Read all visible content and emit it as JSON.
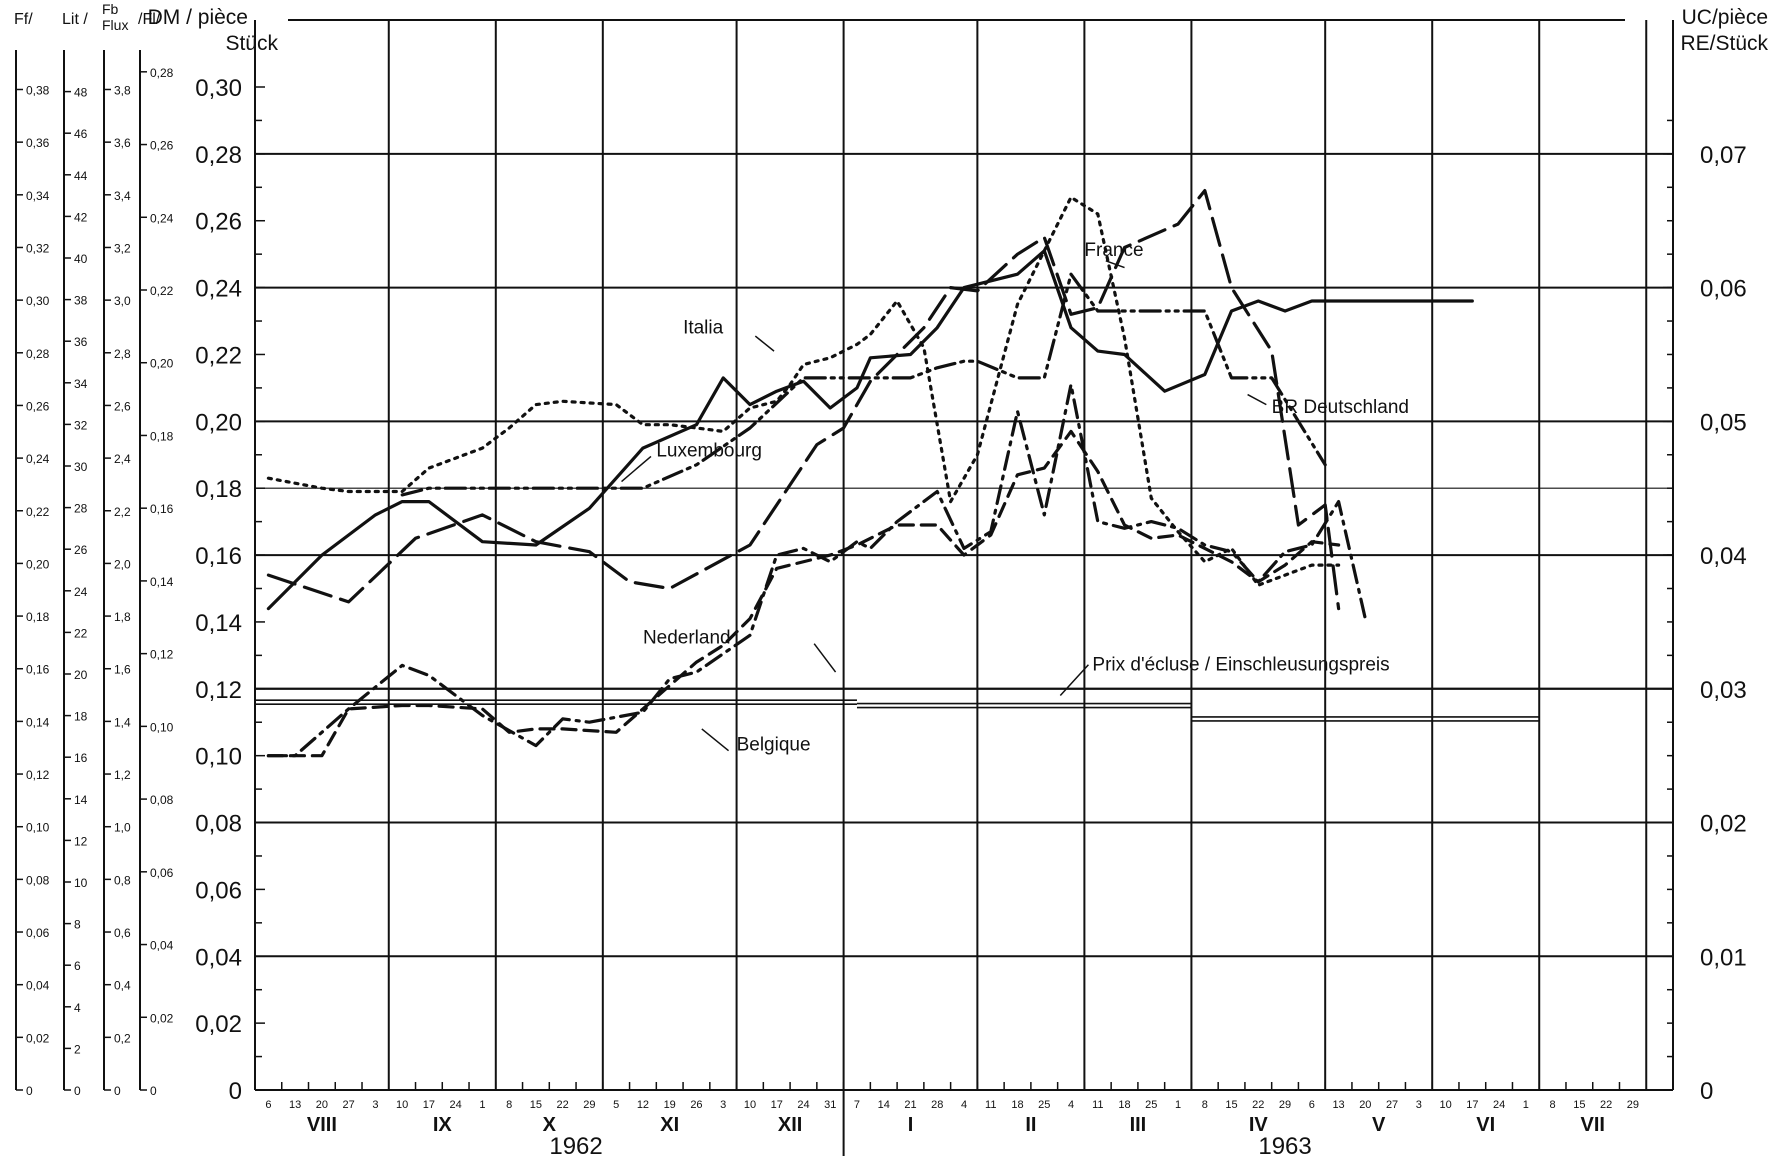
{
  "chart_data": {
    "type": "line",
    "title": "",
    "units": {
      "left_main": "DM / pièce\nStück",
      "right_main": "UC/pièce\nRE/Stück",
      "left_extra": [
        {
          "label": "Ff/",
          "ticks": [
            "0,38",
            "0,36",
            "0,34",
            "0,32",
            "0,30",
            "0,28",
            "0,26",
            "0,24",
            "0,22",
            "0,20",
            "0,18",
            "0,16",
            "0,14",
            "0,12",
            "0,10",
            "0,08",
            "0,06",
            "0,04",
            "0,02",
            "0"
          ],
          "values": [
            0.38,
            0.36,
            0.34,
            0.32,
            0.3,
            0.28,
            0.26,
            0.24,
            0.22,
            0.2,
            0.18,
            0.16,
            0.14,
            0.12,
            0.1,
            0.08,
            0.06,
            0.04,
            0.02,
            0
          ],
          "max": 0.395
        },
        {
          "label": "Lit /",
          "ticks": [
            "48",
            "46",
            "44",
            "42",
            "40",
            "38",
            "36",
            "34",
            "32",
            "30",
            "28",
            "26",
            "24",
            "22",
            "20",
            "18",
            "16",
            "14",
            "12",
            "10",
            "8",
            "6",
            "4",
            "2",
            "0"
          ],
          "values": [
            48,
            46,
            44,
            42,
            40,
            38,
            36,
            34,
            32,
            30,
            28,
            26,
            24,
            22,
            20,
            18,
            16,
            14,
            12,
            10,
            8,
            6,
            4,
            2,
            0
          ],
          "max": 50.0
        },
        {
          "label": "Fb\nFlux",
          "ticks": [
            "3,8",
            "3,6",
            "3,4",
            "3,2",
            "3,0",
            "2,8",
            "2,6",
            "2,4",
            "2,2",
            "2,0",
            "1,8",
            "1,6",
            "1,4",
            "1,2",
            "1,0",
            "0,8",
            "0,6",
            "0,4",
            "0,2",
            "0"
          ],
          "values": [
            3.8,
            3.6,
            3.4,
            3.2,
            3.0,
            2.8,
            2.6,
            2.4,
            2.2,
            2.0,
            1.8,
            1.6,
            1.4,
            1.2,
            1.0,
            0.8,
            0.6,
            0.4,
            0.2,
            0
          ],
          "max": 3.95
        },
        {
          "label": "/Fl/",
          "ticks": [
            "0,28",
            "0,26",
            "0,24",
            "0,22",
            "0,20",
            "0,18",
            "0,16",
            "0,14",
            "0,12",
            "0,10",
            "0,08",
            "0,06",
            "0,04",
            "0,02",
            "0"
          ],
          "values": [
            0.28,
            0.26,
            0.24,
            0.22,
            0.2,
            0.18,
            0.16,
            0.14,
            0.12,
            0.1,
            0.08,
            0.06,
            0.04,
            0.02,
            0
          ],
          "max": 0.286
        }
      ]
    },
    "y_main": {
      "min": 0,
      "max": 0.3,
      "ticks": [
        0.3,
        0.28,
        0.26,
        0.24,
        0.22,
        0.2,
        0.18,
        0.16,
        0.14,
        0.12,
        0.1,
        0.08,
        0.06,
        0.04,
        0.02,
        0
      ],
      "tick_labels": [
        "0,30",
        "0,28",
        "0,26",
        "0,24",
        "0,22",
        "0,20",
        "0,18",
        "0,16",
        "0,14",
        "0,12",
        "0,10",
        "0,08",
        "0,06",
        "0,04",
        "0,02",
        "0"
      ],
      "grid_major": [
        0.28,
        0.24,
        0.2,
        0.16,
        0.12,
        0.08,
        0.04
      ],
      "grid_minor": [
        0.18
      ]
    },
    "y_right": {
      "ticks": [
        0.07,
        0.06,
        0.05,
        0.04,
        0.03,
        0.02,
        0.01,
        0
      ],
      "tick_labels": [
        "0,07",
        "0,06",
        "0,05",
        "0,04",
        "0,03",
        "0,02",
        "0,01",
        "0"
      ]
    },
    "x_axis": {
      "weeks": 53,
      "week_labels": [
        "6",
        "13",
        "20",
        "27",
        "3",
        "10",
        "17",
        "24",
        "1",
        "8",
        "15",
        "22",
        "29",
        "5",
        "12",
        "19",
        "26",
        "3",
        "10",
        "17",
        "24",
        "31",
        "7",
        "14",
        "21",
        "28",
        "4",
        "11",
        "18",
        "25",
        "4",
        "11",
        "18",
        "25",
        "1",
        "8",
        "15",
        "22",
        "29",
        "6",
        "13",
        "20",
        "27",
        "3",
        "10",
        "17",
        "24",
        "1",
        "8",
        "15",
        "22",
        "29"
      ],
      "month_boundaries": [
        0,
        5,
        9,
        13,
        18,
        22,
        27,
        31,
        35,
        40,
        44,
        48,
        52,
        53
      ],
      "months": [
        "VIII",
        "IX",
        "X",
        "XI",
        "XII",
        "I",
        "II",
        "III",
        "IV",
        "V",
        "VI",
        "VII"
      ],
      "years": [
        {
          "label": "1962",
          "center": 11.5
        },
        {
          "label": "1963",
          "center": 38.0
        }
      ],
      "year_divider": 22.5
    },
    "series": [
      {
        "name": "France",
        "style": "longdash",
        "label_pos": [
          30.5,
          0.2495
        ],
        "x": [
          0,
          3,
          5.5,
          8,
          10,
          12,
          13.5,
          15,
          18,
          20.5,
          21.5,
          22.5,
          24.5,
          25.5,
          26.5,
          28,
          29,
          30,
          31,
          32,
          34,
          35,
          36,
          37.5,
          38.5,
          39.5,
          40
        ],
        "y": [
          0.154,
          0.146,
          0.165,
          0.172,
          0.164,
          0.161,
          0.152,
          0.15,
          0.163,
          0.193,
          0.198,
          0.212,
          0.228,
          0.24,
          0.239,
          0.25,
          0.255,
          0.232,
          0.234,
          0.252,
          0.259,
          0.269,
          0.24,
          0.221,
          0.169,
          0.175,
          0.144
        ]
      },
      {
        "name": "BR Deutschland",
        "style": "solid",
        "label_pos": [
          37.5,
          0.2025
        ],
        "x": [
          0,
          2,
          4,
          5,
          6,
          8,
          10,
          12,
          14,
          16,
          17,
          18,
          19,
          20,
          21,
          22,
          22.5,
          24,
          25,
          26,
          28,
          29,
          30,
          31,
          32,
          33.5,
          35,
          36,
          37,
          38,
          39,
          40,
          42,
          43,
          45
        ],
        "y": [
          0.144,
          0.16,
          0.172,
          0.176,
          0.176,
          0.164,
          0.163,
          0.174,
          0.192,
          0.199,
          0.213,
          0.205,
          0.209,
          0.212,
          0.204,
          0.21,
          0.219,
          0.22,
          0.228,
          0.24,
          0.244,
          0.251,
          0.228,
          0.221,
          0.22,
          0.209,
          0.214,
          0.233,
          0.236,
          0.233,
          0.236,
          0.236,
          0.236,
          0.236,
          0.236
        ]
      },
      {
        "name": "Italia",
        "style": "dotted",
        "label_pos": [
          15.5,
          0.2263
        ],
        "x": [
          0,
          2,
          3,
          5,
          6,
          8,
          9,
          10,
          11,
          13,
          14,
          15,
          16,
          17,
          18,
          19,
          19.5,
          20,
          21,
          22,
          22.5,
          23.5,
          24.5,
          25.5,
          26.5,
          28,
          29,
          30,
          31,
          32,
          33,
          34,
          35,
          36,
          37,
          38,
          39,
          40
        ],
        "y": [
          0.183,
          0.18,
          0.179,
          0.179,
          0.186,
          0.192,
          0.198,
          0.205,
          0.206,
          0.205,
          0.199,
          0.199,
          0.198,
          0.197,
          0.204,
          0.206,
          0.211,
          0.217,
          0.219,
          0.223,
          0.226,
          0.236,
          0.222,
          0.176,
          0.19,
          0.235,
          0.251,
          0.267,
          0.262,
          0.225,
          0.177,
          0.167,
          0.158,
          0.162,
          0.151,
          0.154,
          0.157,
          0.157
        ]
      },
      {
        "name": "Luxembourg",
        "style": "dashdotdot",
        "label_pos": [
          14.5,
          0.1895
        ],
        "x": [
          5,
          6,
          8,
          10,
          12,
          14,
          16,
          18,
          20,
          22,
          24,
          25,
          26,
          26.5,
          28,
          29,
          30,
          31,
          32,
          33,
          34,
          35,
          36,
          37.5,
          38.5,
          39.5
        ],
        "y": [
          0.178,
          0.18,
          0.18,
          0.18,
          0.18,
          0.18,
          0.187,
          0.198,
          0.213,
          0.213,
          0.213,
          0.216,
          0.218,
          0.218,
          0.213,
          0.213,
          0.244,
          0.233,
          0.233,
          0.233,
          0.233,
          0.233,
          0.213,
          0.213,
          0.2,
          0.187
        ]
      },
      {
        "name": "Nederland",
        "style": "dashdot",
        "label_pos": [
          14.0,
          0.1335
        ],
        "x": [
          0,
          1,
          3,
          5,
          6,
          8,
          10,
          11,
          12,
          14,
          15,
          16,
          18,
          19,
          20,
          21,
          22,
          22.5,
          23.5,
          25,
          26,
          27,
          28,
          29,
          30,
          31,
          32,
          33,
          34,
          35,
          36,
          37,
          38,
          39,
          40,
          41
        ],
        "y": [
          0.1,
          0.1,
          0.114,
          0.127,
          0.124,
          0.112,
          0.103,
          0.111,
          0.11,
          0.113,
          0.123,
          0.125,
          0.136,
          0.16,
          0.162,
          0.158,
          0.164,
          0.162,
          0.17,
          0.179,
          0.162,
          0.167,
          0.203,
          0.172,
          0.211,
          0.17,
          0.168,
          0.17,
          0.168,
          0.163,
          0.161,
          0.152,
          0.161,
          0.163,
          0.176,
          0.141
        ]
      },
      {
        "name": "Belgique",
        "style": "shortdash",
        "label_pos": [
          17.5,
          0.1015
        ],
        "x": [
          0,
          2,
          3,
          5,
          6,
          8,
          9,
          10,
          11,
          13,
          14,
          16,
          17,
          18,
          19,
          21,
          22,
          23.5,
          25,
          26,
          27,
          28,
          29,
          30,
          31,
          32,
          33,
          34,
          35,
          36,
          37,
          38,
          39,
          40
        ],
        "y": [
          0.1,
          0.1,
          0.114,
          0.115,
          0.115,
          0.114,
          0.107,
          0.108,
          0.108,
          0.107,
          0.114,
          0.128,
          0.133,
          0.141,
          0.156,
          0.16,
          0.163,
          0.169,
          0.169,
          0.16,
          0.166,
          0.184,
          0.186,
          0.197,
          0.185,
          0.169,
          0.165,
          0.166,
          0.162,
          0.158,
          0.152,
          0.157,
          0.164,
          0.163
        ]
      }
    ],
    "reference": {
      "name": "Prix d'écluse / Einschleusungspreis",
      "segments": [
        {
          "x0": 0,
          "x1": 22.5,
          "y": 0.116
        },
        {
          "x0": 22.5,
          "x1": 35,
          "y": 0.115
        },
        {
          "x0": 35,
          "x1": 48,
          "y": 0.111
        }
      ],
      "label_pos": [
        30.8,
        0.1254
      ]
    }
  }
}
